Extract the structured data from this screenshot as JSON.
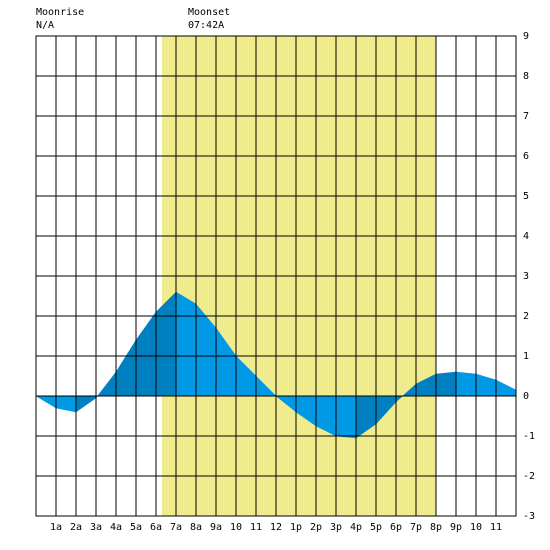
{
  "header": {
    "moonrise_label": "Moonrise",
    "moonrise": "N/A",
    "moonset_label": "Moonset",
    "moonset": "07:42A"
  },
  "chart_data": {
    "type": "area",
    "x": [
      0,
      1,
      2,
      3,
      4,
      5,
      6,
      7,
      8,
      9,
      10,
      11,
      12,
      13,
      14,
      15,
      16,
      17,
      18,
      19,
      20,
      21,
      22,
      23,
      24
    ],
    "values": [
      0.0,
      -0.3,
      -0.4,
      -0.05,
      0.6,
      1.4,
      2.1,
      2.6,
      2.3,
      1.7,
      1.0,
      0.5,
      0.0,
      -0.4,
      -0.75,
      -1.0,
      -1.05,
      -0.7,
      -0.15,
      0.3,
      0.55,
      0.6,
      0.55,
      0.4,
      0.15
    ],
    "rising_color": "#0080c0",
    "falling_color": "#0099e6",
    "daylight": [
      6.3,
      20.0
    ],
    "daylight_color": "#f0eb8c",
    "xlim": [
      0,
      24
    ],
    "xticks": [
      {
        "value": 1,
        "label": "1a"
      },
      {
        "value": 2,
        "label": "2a"
      },
      {
        "value": 3,
        "label": "3a"
      },
      {
        "value": 4,
        "label": "4a"
      },
      {
        "value": 5,
        "label": "5a"
      },
      {
        "value": 6,
        "label": "6a"
      },
      {
        "value": 7,
        "label": "7a"
      },
      {
        "value": 8,
        "label": "8a"
      },
      {
        "value": 9,
        "label": "9a"
      },
      10,
      11,
      12,
      {
        "value": 13,
        "label": "1p"
      },
      {
        "value": 14,
        "label": "2p"
      },
      {
        "value": 15,
        "label": "3p"
      },
      {
        "value": 16,
        "label": "4p"
      },
      {
        "value": 17,
        "label": "5p"
      },
      {
        "value": 18,
        "label": "6p"
      },
      {
        "value": 19,
        "label": "7p"
      },
      {
        "value": 20,
        "label": "8p"
      },
      {
        "value": 21,
        "label": "9p"
      },
      {
        "value": 22,
        "label": "10"
      },
      {
        "value": 23,
        "label": "11"
      }
    ],
    "ylim": [
      -3,
      9
    ],
    "yticks": [
      -3,
      -2,
      -1,
      0,
      1,
      2,
      3,
      4,
      5,
      6,
      7,
      8,
      9
    ],
    "grid": true
  }
}
